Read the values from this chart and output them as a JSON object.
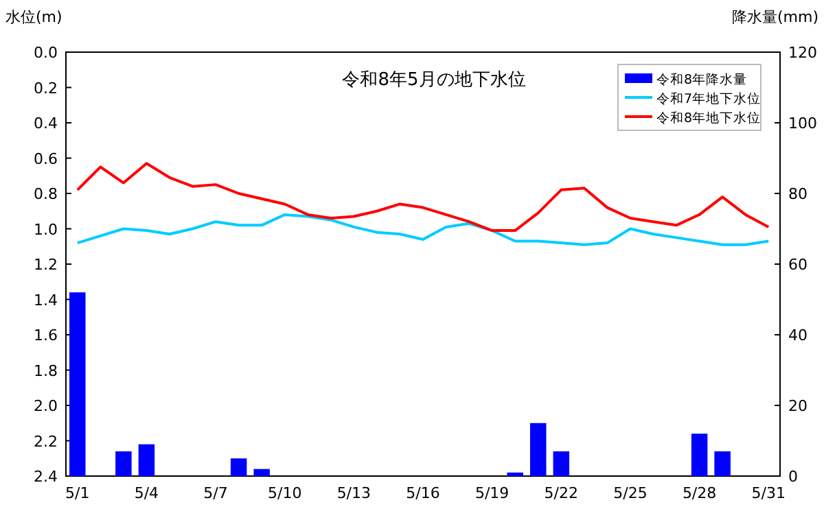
{
  "chart_data": {
    "type": "line",
    "title": "令和8年5月の地下水位",
    "ylabel": "水位(m)",
    "y2label": "降水量(mm)",
    "categories": [
      "5/1",
      null,
      null,
      "5/4",
      null,
      null,
      "5/7",
      null,
      null,
      "5/10",
      null,
      null,
      "5/13",
      null,
      null,
      "5/16",
      null,
      null,
      "5/19",
      null,
      null,
      "5/22",
      null,
      null,
      "5/25",
      null,
      null,
      "5/28",
      null,
      null,
      "5/31"
    ],
    "ylim": [
      2.4,
      0
    ],
    "yticks": [
      {
        "value": 0,
        "label": "0.0"
      },
      0.2,
      0.4,
      0.6,
      0.8,
      {
        "value": 1,
        "label": "1.0"
      },
      1.2,
      1.4,
      1.6,
      1.8,
      {
        "value": 2,
        "label": "2.0"
      },
      2.2,
      2.4
    ],
    "y2lim": [
      0,
      120
    ],
    "y2ticks": [
      0,
      20,
      40,
      60,
      80,
      100,
      120
    ],
    "legend": "top right",
    "marker": "none",
    "line_style": "solid",
    "series": [
      {
        "name": "令和8年降水量",
        "type": "bar",
        "axis": "y2",
        "color": "#0000ff",
        "values": [
          52,
          0,
          7,
          9,
          0,
          0,
          0,
          5,
          2,
          0,
          0,
          0,
          0,
          0,
          0,
          0,
          0,
          0,
          0,
          1,
          15,
          7,
          0,
          0,
          0,
          0,
          0,
          12,
          7,
          0,
          0
        ]
      },
      {
        "name": "令和7年地下水位",
        "color": "#00ccff",
        "values": [
          1.08,
          1.04,
          1.0,
          1.01,
          1.03,
          1.0,
          0.96,
          0.98,
          0.98,
          0.92,
          0.93,
          0.95,
          0.99,
          1.02,
          1.03,
          1.06,
          0.99,
          0.97,
          1.01,
          1.07,
          1.07,
          1.08,
          1.09,
          1.08,
          1.0,
          1.03,
          1.05,
          1.07,
          1.09,
          1.09,
          1.07
        ]
      },
      {
        "name": "令和8年地下水位",
        "color": "#ff0000",
        "values": [
          0.78,
          0.65,
          0.74,
          0.63,
          0.71,
          0.76,
          0.75,
          0.8,
          0.83,
          0.86,
          0.92,
          0.94,
          0.93,
          0.9,
          0.86,
          0.88,
          0.92,
          0.96,
          1.01,
          1.01,
          0.91,
          0.78,
          0.77,
          0.88,
          0.94,
          0.96,
          0.98,
          0.92,
          0.82,
          0.92,
          0.99
        ]
      }
    ]
  }
}
